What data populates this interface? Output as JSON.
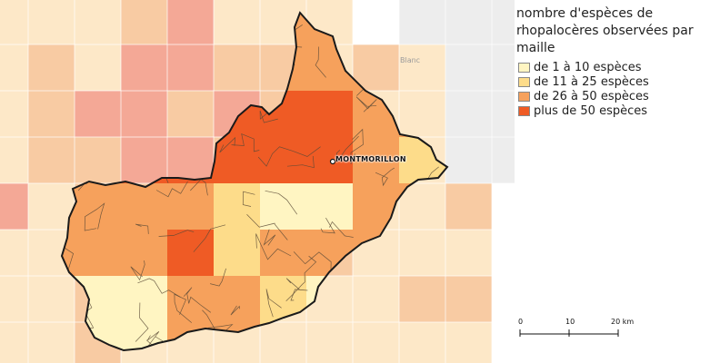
{
  "legend": {
    "title": "nombre d'espèces de rhopalocères observées par maille",
    "classes": [
      {
        "label": "de 1 à 10 espèces",
        "color": "#fff5c2"
      },
      {
        "label": "de 11 à 25 espèces",
        "color": "#fddc8a"
      },
      {
        "label": "de 26 à 50 espèces",
        "color": "#f6a15c"
      },
      {
        "label": "plus de 50 espèces",
        "color": "#ef5b25"
      }
    ]
  },
  "scale_bar": {
    "labels": [
      "0",
      "10",
      "20 km"
    ]
  },
  "map": {
    "town_label": "MONTMORILLON",
    "basemap_label": "Blanc",
    "colors": {
      "background": "#ececec",
      "outline": "#1a1a1a",
      "commune_lines": "#5b4a36",
      "outside_low": "#fde8c8",
      "outside_mid": "#f8cba3",
      "outside_high": "#f4a896",
      "unsampled": "#ededed"
    }
  }
}
